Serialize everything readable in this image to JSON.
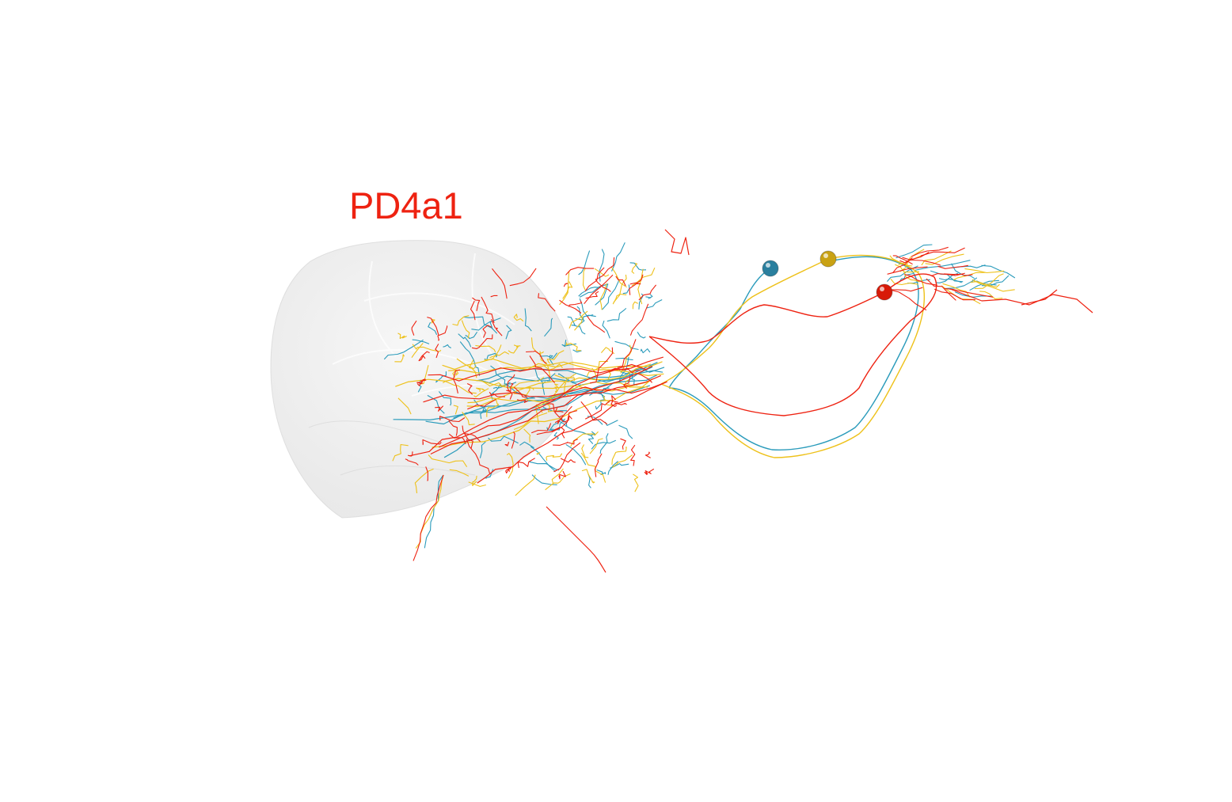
{
  "title": "PD4a1",
  "title_color": "#ee2211",
  "background": "#ffffff",
  "neuropil_color": "#d9d9d9",
  "neurons": [
    {
      "color": "#2a9bbb",
      "soma_color": "#2a7f9e"
    },
    {
      "color": "#eec11a",
      "soma_color": "#c9a214"
    },
    {
      "color": "#ee2211",
      "soma_color": "#d81a08"
    }
  ]
}
